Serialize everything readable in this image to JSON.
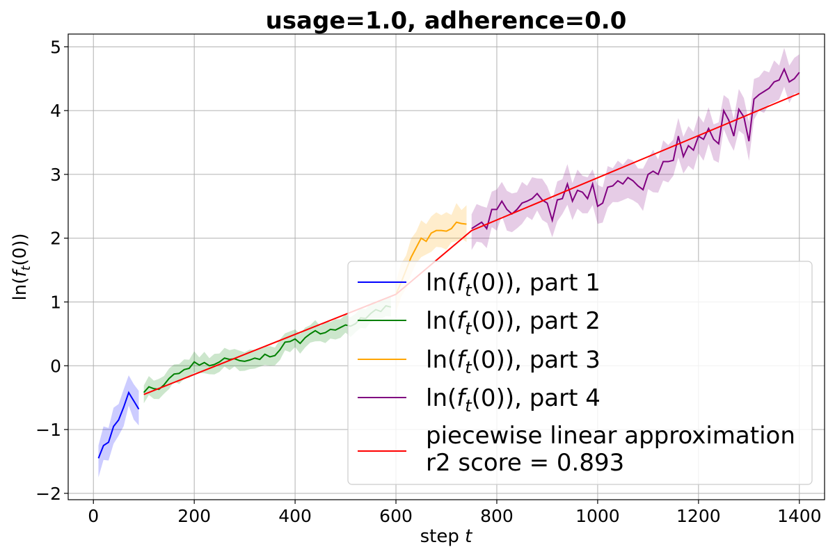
{
  "chart_data": {
    "type": "line",
    "title": "usage=1.0, adherence=0.0",
    "xlabel_text": "step ",
    "xlabel_var": "t",
    "ylabel": "ln(f_t(0))",
    "xlim": [
      -50,
      1450
    ],
    "ylim": [
      -2.1,
      5.2
    ],
    "xticks": [
      0,
      200,
      400,
      600,
      800,
      1000,
      1200,
      1400
    ],
    "yticks": [
      -2,
      -1,
      0,
      1,
      2,
      3,
      4,
      5
    ],
    "xtick_labels": [
      "0",
      "200",
      "400",
      "600",
      "800",
      "1000",
      "1200",
      "1400"
    ],
    "ytick_labels": [
      "−2",
      "−1",
      "0",
      "1",
      "2",
      "3",
      "4",
      "5"
    ],
    "grid": true,
    "legend_position": "lower-right",
    "series": [
      {
        "legend": "ln(f_t(0)), part 1",
        "color": "#0000ff",
        "x": [
          10,
          20,
          30,
          40,
          50,
          60,
          70,
          80,
          90
        ],
        "y": [
          -1.45,
          -1.25,
          -1.2,
          -0.95,
          -0.85,
          -0.65,
          -0.42,
          -0.55,
          -0.68
        ],
        "band": 0.25
      },
      {
        "legend": "ln(f_t(0)), part 2",
        "color": "#008000",
        "x": [
          100,
          110,
          120,
          130,
          140,
          150,
          160,
          170,
          180,
          190,
          200,
          210,
          220,
          230,
          240,
          250,
          260,
          270,
          280,
          290,
          300,
          310,
          320,
          330,
          340,
          350,
          360,
          370,
          380,
          390,
          400,
          410,
          420,
          430,
          440,
          450,
          460,
          470,
          480,
          490,
          500,
          510,
          520,
          530,
          540,
          550,
          560,
          570,
          580,
          590
        ],
        "y": [
          -0.42,
          -0.33,
          -0.36,
          -0.37,
          -0.3,
          -0.2,
          -0.13,
          -0.12,
          -0.06,
          -0.04,
          0.06,
          0.01,
          0.05,
          0.0,
          0.02,
          0.06,
          0.12,
          0.1,
          0.11,
          0.08,
          0.07,
          0.09,
          0.12,
          0.1,
          0.18,
          0.14,
          0.16,
          0.25,
          0.37,
          0.38,
          0.42,
          0.35,
          0.44,
          0.5,
          0.55,
          0.5,
          0.52,
          0.57,
          0.56,
          0.6,
          0.64,
          0.62,
          0.66,
          0.75,
          0.74,
          0.82,
          0.88,
          0.85,
          0.94,
          0.92
        ],
        "band": 0.14
      },
      {
        "legend": "ln(f_t(0)), part 3",
        "color": "#ffa500",
        "x": [
          600,
          610,
          620,
          630,
          640,
          650,
          660,
          670,
          680,
          690,
          700,
          710,
          720,
          730,
          740
        ],
        "y": [
          1.12,
          1.3,
          1.5,
          1.7,
          1.85,
          2.0,
          1.95,
          2.08,
          2.12,
          2.12,
          2.11,
          2.15,
          2.25,
          2.23,
          2.22
        ],
        "band": 0.25
      },
      {
        "legend": "ln(f_t(0)), part 4",
        "color": "#800080",
        "x": [
          750,
          760,
          770,
          780,
          790,
          800,
          810,
          820,
          830,
          840,
          850,
          860,
          870,
          880,
          890,
          900,
          910,
          920,
          930,
          940,
          950,
          960,
          970,
          980,
          990,
          1000,
          1010,
          1020,
          1030,
          1040,
          1050,
          1060,
          1070,
          1080,
          1090,
          1100,
          1110,
          1120,
          1130,
          1140,
          1150,
          1160,
          1170,
          1180,
          1190,
          1200,
          1210,
          1220,
          1230,
          1240,
          1250,
          1260,
          1270,
          1280,
          1290,
          1300,
          1310,
          1320,
          1330,
          1340,
          1350,
          1360,
          1370,
          1380,
          1390,
          1400
        ],
        "y": [
          2.15,
          2.2,
          2.25,
          2.15,
          2.45,
          2.45,
          2.58,
          2.45,
          2.38,
          2.45,
          2.55,
          2.58,
          2.62,
          2.7,
          2.6,
          2.55,
          2.28,
          2.6,
          2.62,
          2.85,
          2.58,
          2.75,
          2.72,
          2.62,
          2.85,
          2.5,
          2.55,
          2.8,
          2.82,
          2.9,
          2.85,
          2.95,
          2.9,
          2.82,
          2.76,
          3.0,
          3.05,
          3.0,
          3.2,
          3.2,
          3.22,
          3.6,
          3.28,
          3.45,
          3.38,
          3.6,
          3.55,
          3.72,
          3.55,
          3.48,
          4.0,
          3.85,
          3.6,
          4.02,
          3.9,
          3.52,
          4.18,
          4.25,
          4.3,
          4.35,
          4.45,
          4.48,
          4.65,
          4.45,
          4.5,
          4.6
        ],
        "band": 0.28
      }
    ],
    "fit": {
      "legend_line1": "piecewise linear approximation",
      "legend_line2": "r2 score = 0.893",
      "color": "#ff0000",
      "x": [
        100,
        600,
        750,
        1400
      ],
      "y": [
        -0.45,
        1.12,
        2.12,
        4.27
      ]
    }
  }
}
